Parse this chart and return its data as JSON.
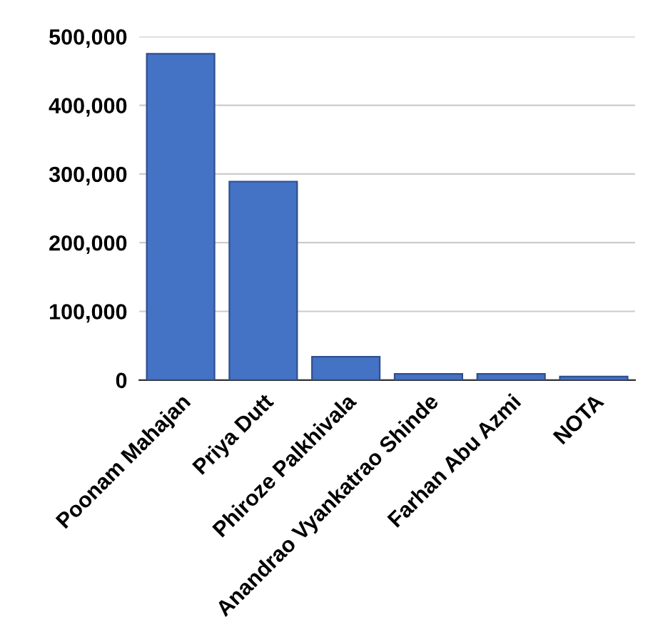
{
  "chart_data": {
    "type": "bar",
    "categories": [
      "Poonam Mahajan",
      "Priya Dutt",
      "Phiroze Palkhivala",
      "Anandrao Vyankatrao Shinde",
      "Farhan Abu Azmi",
      "NOTA"
    ],
    "values": [
      475000,
      289000,
      34000,
      9000,
      9000,
      5000
    ],
    "color": "#4472c4",
    "ylim": [
      0,
      500000
    ],
    "yticks": [
      {
        "value": 0,
        "label": "0"
      },
      {
        "value": 100000,
        "label": "100,000"
      },
      {
        "value": 200000,
        "label": "200,000"
      },
      {
        "value": 300000,
        "label": "300,000"
      },
      {
        "value": 400000,
        "label": "400,000"
      },
      {
        "value": 500000,
        "label": "500,000"
      }
    ],
    "grid": "y"
  }
}
